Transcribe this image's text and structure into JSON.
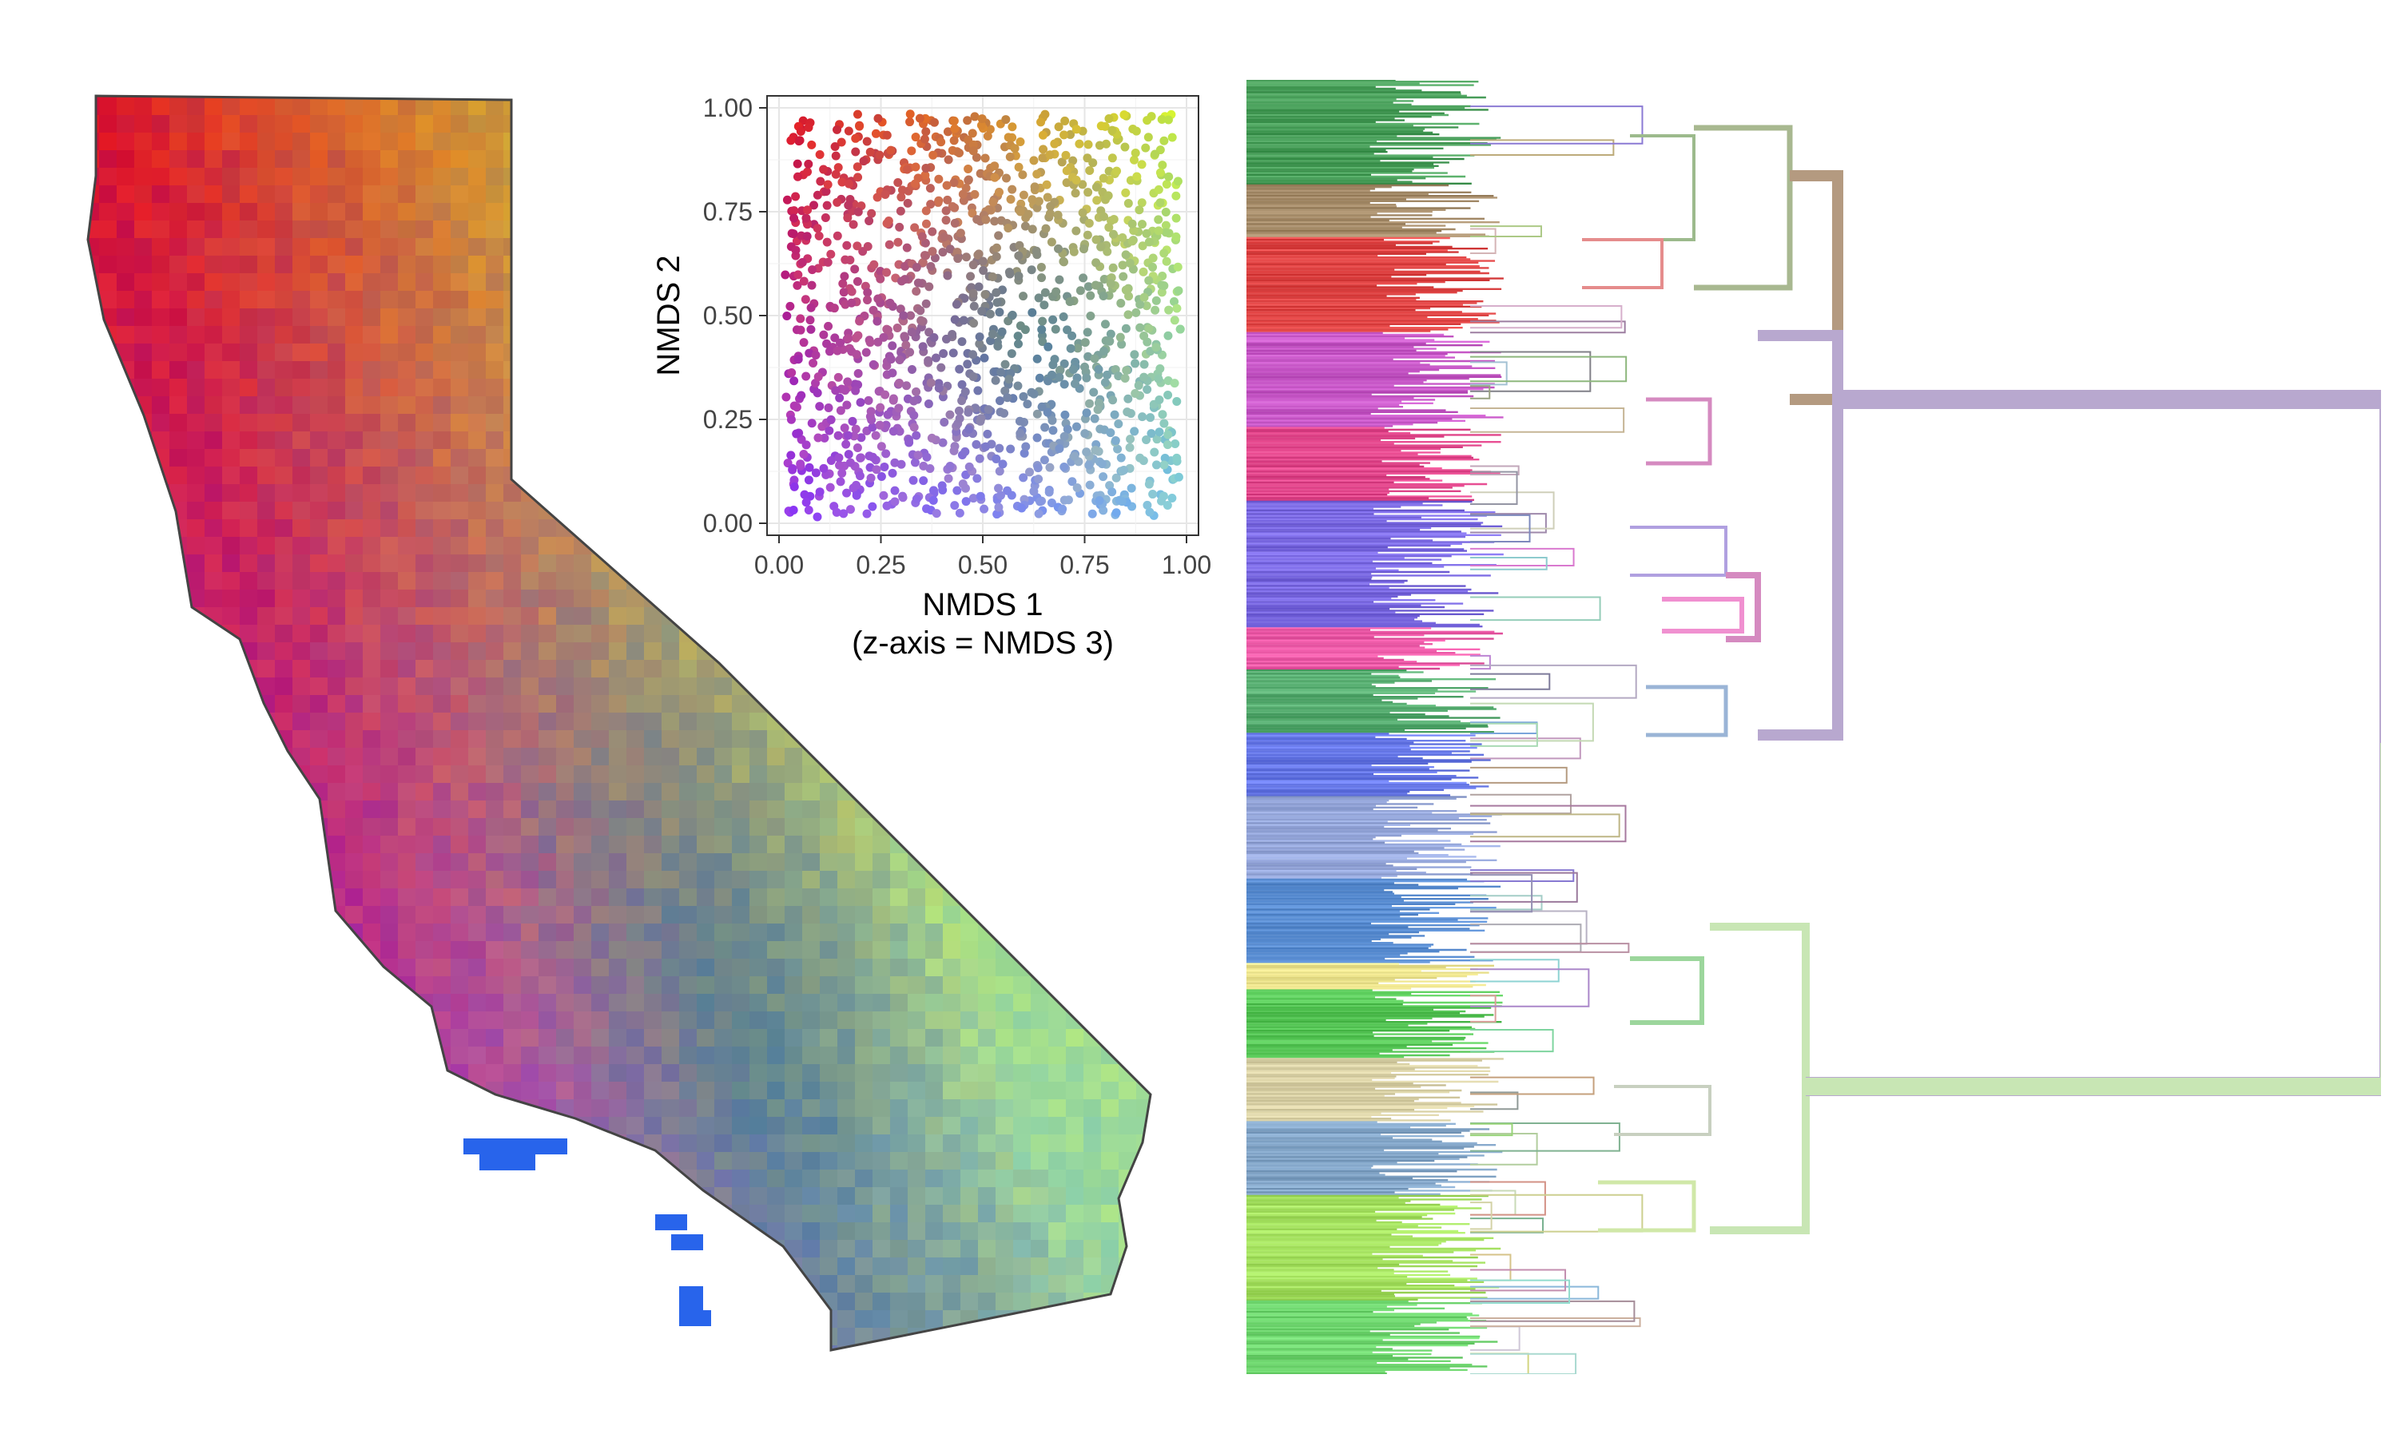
{
  "chart_data": [
    {
      "type": "heatmap",
      "panel": "map",
      "description_tag": "gridded RGB map of California colored by NMDS ordination",
      "outline": "state-boundary"
    },
    {
      "type": "scatter",
      "panel": "ordination",
      "xlabel": "NMDS 1",
      "ylabel": "NMDS 2",
      "subtitle": "(z-axis = NMDS 3)",
      "xlim": [
        0,
        1
      ],
      "ylim": [
        0,
        1
      ],
      "xticks": [
        "0.00",
        "0.25",
        "0.50",
        "0.75",
        "1.00"
      ],
      "yticks": [
        "0.00",
        "0.25",
        "0.50",
        "0.75",
        "1.00"
      ],
      "grid": true,
      "point_count": 1400
    },
    {
      "type": "dendrogram",
      "panel": "tree",
      "orientation": "leaves-left",
      "top_clusters": 4,
      "colors": [
        "#b49a80",
        "#b8a8cf",
        "#c8e6b4",
        "#e58c8c"
      ]
    }
  ]
}
